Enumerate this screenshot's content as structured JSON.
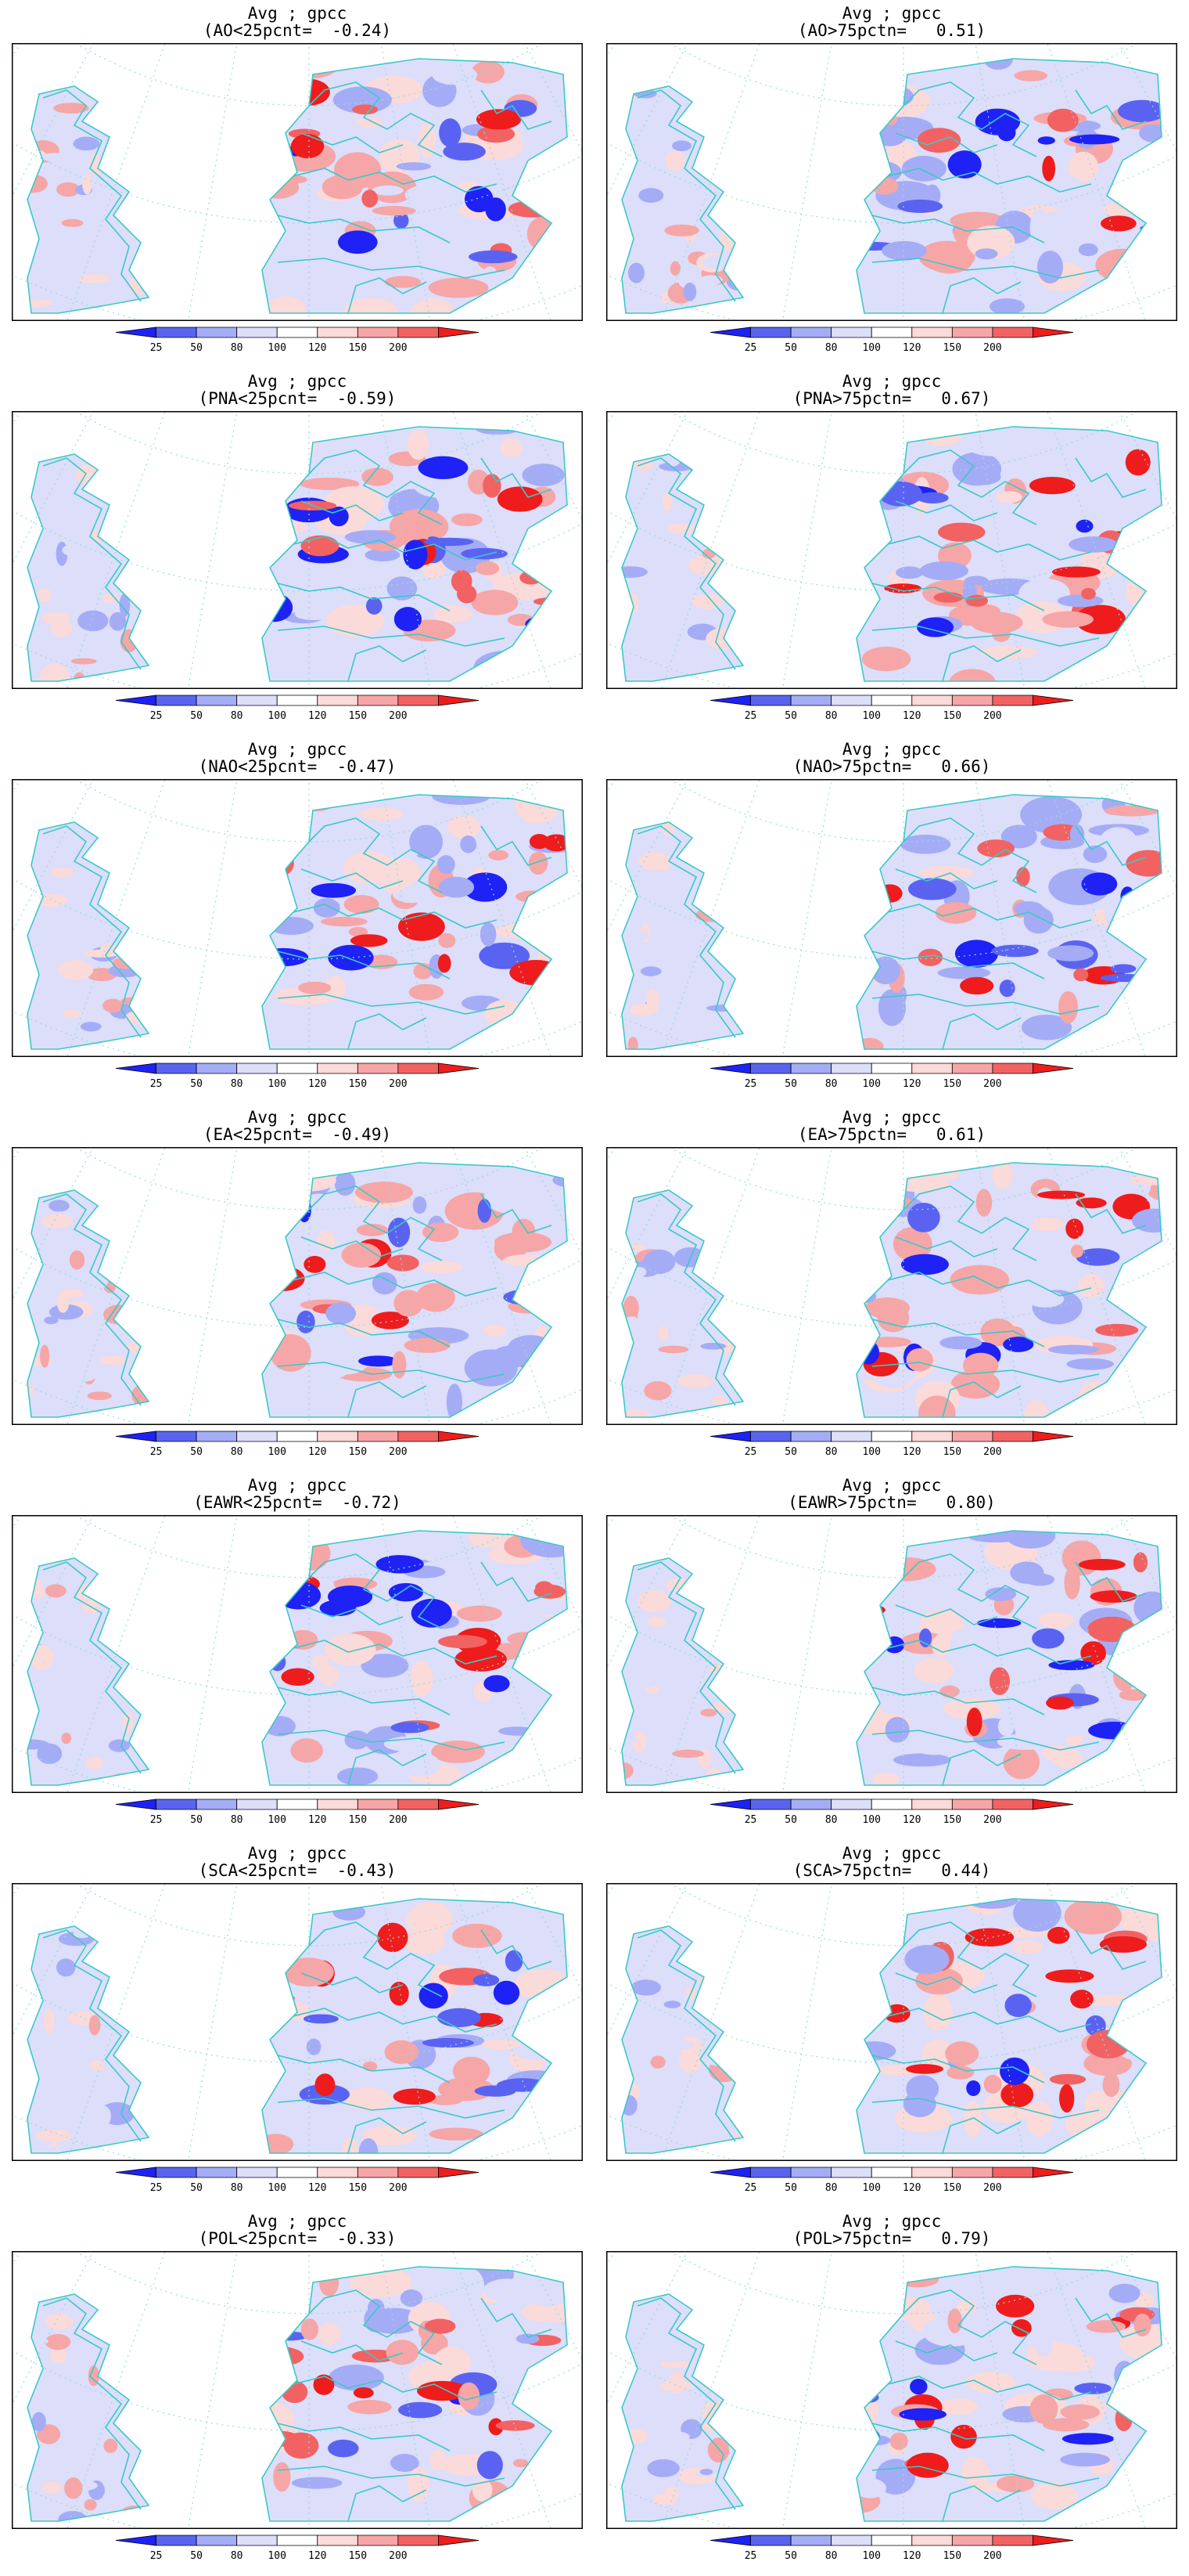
{
  "figure": {
    "colorbar": {
      "colors": [
        "#1e22f5",
        "#5a63f1",
        "#a5acf6",
        "#dcdefa",
        "#ffffff",
        "#fbdada",
        "#f6a6a6",
        "#f26262",
        "#ee1c1c"
      ],
      "labels": [
        "25",
        "50",
        "80",
        "100",
        "120",
        "150",
        "200"
      ]
    },
    "map_colors": {
      "coast": "#3cc8c8",
      "graticule": "#9adada",
      "frame": "#000000"
    },
    "panels": [
      {
        "title": "Avg ; gpcc",
        "subtitle": "(AO<25pcnt=  -0.24)"
      },
      {
        "title": "Avg ; gpcc",
        "subtitle": "(AO>75pctn=   0.51)"
      },
      {
        "title": "Avg ; gpcc",
        "subtitle": "(PNA<25pcnt=  -0.59)"
      },
      {
        "title": "Avg ; gpcc",
        "subtitle": "(PNA>75pctn=   0.67)"
      },
      {
        "title": "Avg ; gpcc",
        "subtitle": "(NAO<25pcnt=  -0.47)"
      },
      {
        "title": "Avg ; gpcc",
        "subtitle": "(NAO>75pctn=   0.66)"
      },
      {
        "title": "Avg ; gpcc",
        "subtitle": "(EA<25pcnt=  -0.49)"
      },
      {
        "title": "Avg ; gpcc",
        "subtitle": "(EA>75pctn=   0.61)"
      },
      {
        "title": "Avg ; gpcc",
        "subtitle": "(EAWR<25pcnt=  -0.72)"
      },
      {
        "title": "Avg ; gpcc",
        "subtitle": "(EAWR>75pctn=   0.80)"
      },
      {
        "title": "Avg ; gpcc",
        "subtitle": "(SCA<25pcnt=  -0.43)"
      },
      {
        "title": "Avg ; gpcc",
        "subtitle": "(SCA>75pctn=   0.44)"
      },
      {
        "title": "Avg ; gpcc",
        "subtitle": "(POL<25pcnt=  -0.33)"
      },
      {
        "title": "Avg ; gpcc",
        "subtitle": "(POL>75pctn=   0.79)"
      }
    ]
  }
}
